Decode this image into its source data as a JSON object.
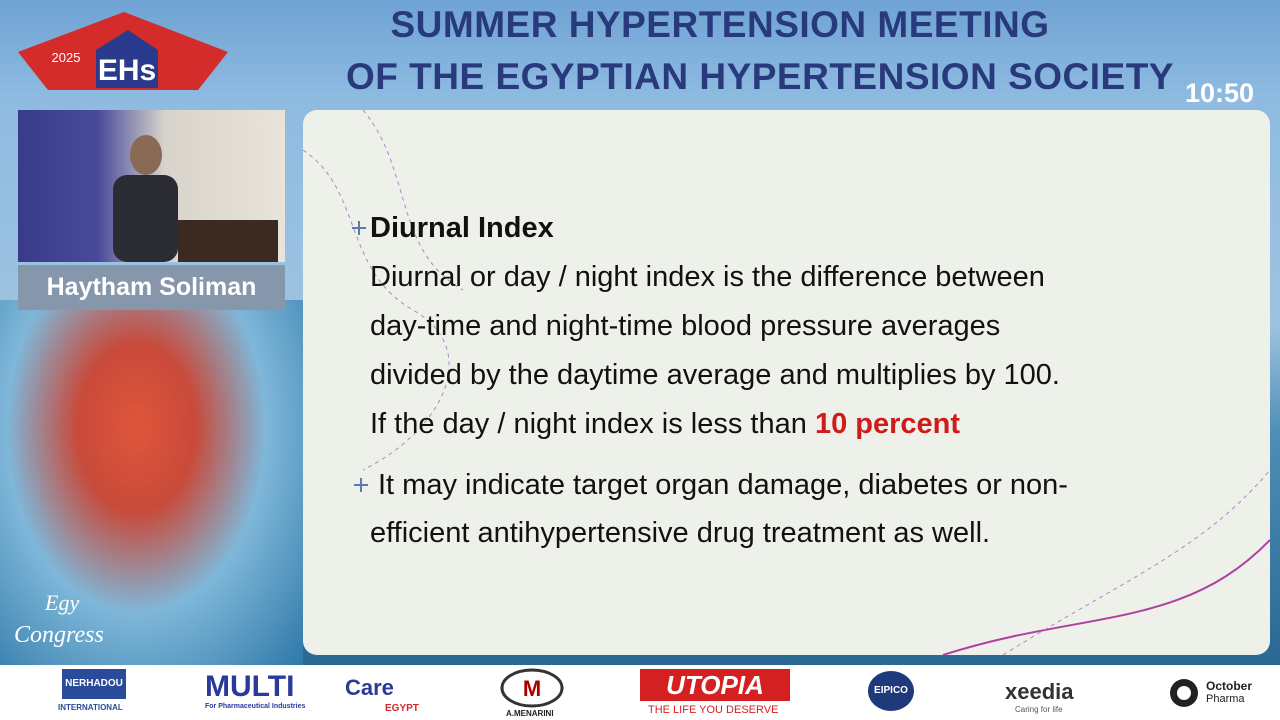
{
  "header": {
    "logo_year": "2025",
    "logo_text": "EHs",
    "title_line1": "SUMMER HYPERTENSION MEETING",
    "title_line2": "OF THE EGYPTIAN HYPERTENSION SOCIETY",
    "clock": "10:50"
  },
  "speaker": {
    "name": "Haytham Soliman"
  },
  "slide": {
    "heading": "Diurnal Index",
    "paragraph_lines": [
      "Diurnal or day / night index is the difference between",
      "day-time and night-time blood pressure averages",
      "divided by the daytime average and multiplies by 100.",
      "If the day / night index is less than"
    ],
    "highlight": "10 percent",
    "bullet_lines": [
      "It may indicate target organ damage, diabetes or non-",
      "efficient antihypertensive drug treatment as well."
    ]
  },
  "watermark": {
    "line1": "Egy",
    "line2": "Congress"
  },
  "sponsors": [
    {
      "name": "NERHADOU",
      "sub": "INTERNATIONAL"
    },
    {
      "name": "MULTI",
      "name2": "Care",
      "sub": "For Pharmaceutical Industries",
      "sub2": "EGYPT"
    },
    {
      "name": "A.MENARINI"
    },
    {
      "name": "UTOPIA",
      "sub": "THE LIFE YOU DESERVE"
    },
    {
      "name": "EIPICO"
    },
    {
      "name": "xeedia",
      "sub": "Caring for life"
    },
    {
      "name": "October",
      "sub": "Pharma"
    }
  ]
}
